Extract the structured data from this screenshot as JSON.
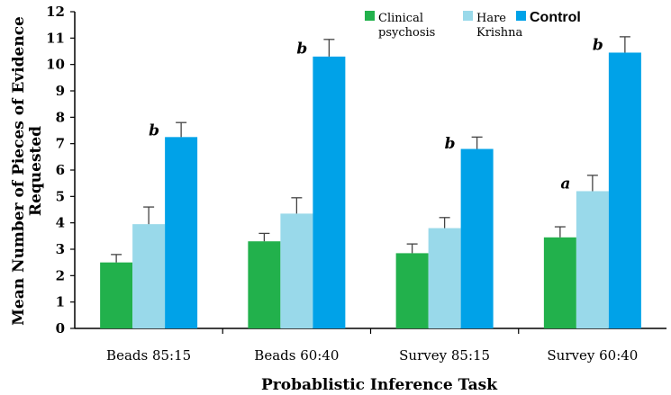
{
  "chart_data": {
    "type": "bar",
    "categories": [
      "Beads 85:15",
      "Beads 60:40",
      "Survey 85:15",
      "Survey 60:40"
    ],
    "series": [
      {
        "name": "Clinical psychosis",
        "legend_lines": [
          "Clinical",
          "psychosis"
        ],
        "color": "#22b14c",
        "values": [
          2.5,
          3.3,
          2.85,
          3.45
        ],
        "errors": [
          0.3,
          0.3,
          0.35,
          0.4
        ]
      },
      {
        "name": "Hare Krishna",
        "legend_lines": [
          "Hare",
          "Krishna"
        ],
        "color": "#99d9ea",
        "values": [
          3.95,
          4.35,
          3.8,
          5.2
        ],
        "errors": [
          0.65,
          0.6,
          0.4,
          0.6
        ]
      },
      {
        "name": "Control",
        "legend_lines": [
          "Control"
        ],
        "color": "#00a2e8",
        "values": [
          7.25,
          10.3,
          6.8,
          10.45
        ],
        "errors": [
          0.55,
          0.65,
          0.45,
          0.6
        ]
      }
    ],
    "annotations": [
      {
        "category": 0,
        "series": 2,
        "text": "b"
      },
      {
        "category": 1,
        "series": 2,
        "text": "b"
      },
      {
        "category": 2,
        "series": 2,
        "text": "b"
      },
      {
        "category": 3,
        "series": 2,
        "text": "b"
      },
      {
        "category": 3,
        "series": 1,
        "text": "a"
      }
    ],
    "xlabel": "Probablistic Inference Task",
    "ylabel_lines": [
      "Mean Number of Pieces of Evidence",
      "Requested"
    ],
    "ylim": [
      0,
      12
    ],
    "yticks": [
      "0",
      "1",
      "2",
      "3",
      "4",
      "5",
      "6",
      "7",
      "8",
      "9",
      "10",
      "11",
      "12"
    ],
    "grid": false,
    "legend_position": "top-right"
  }
}
